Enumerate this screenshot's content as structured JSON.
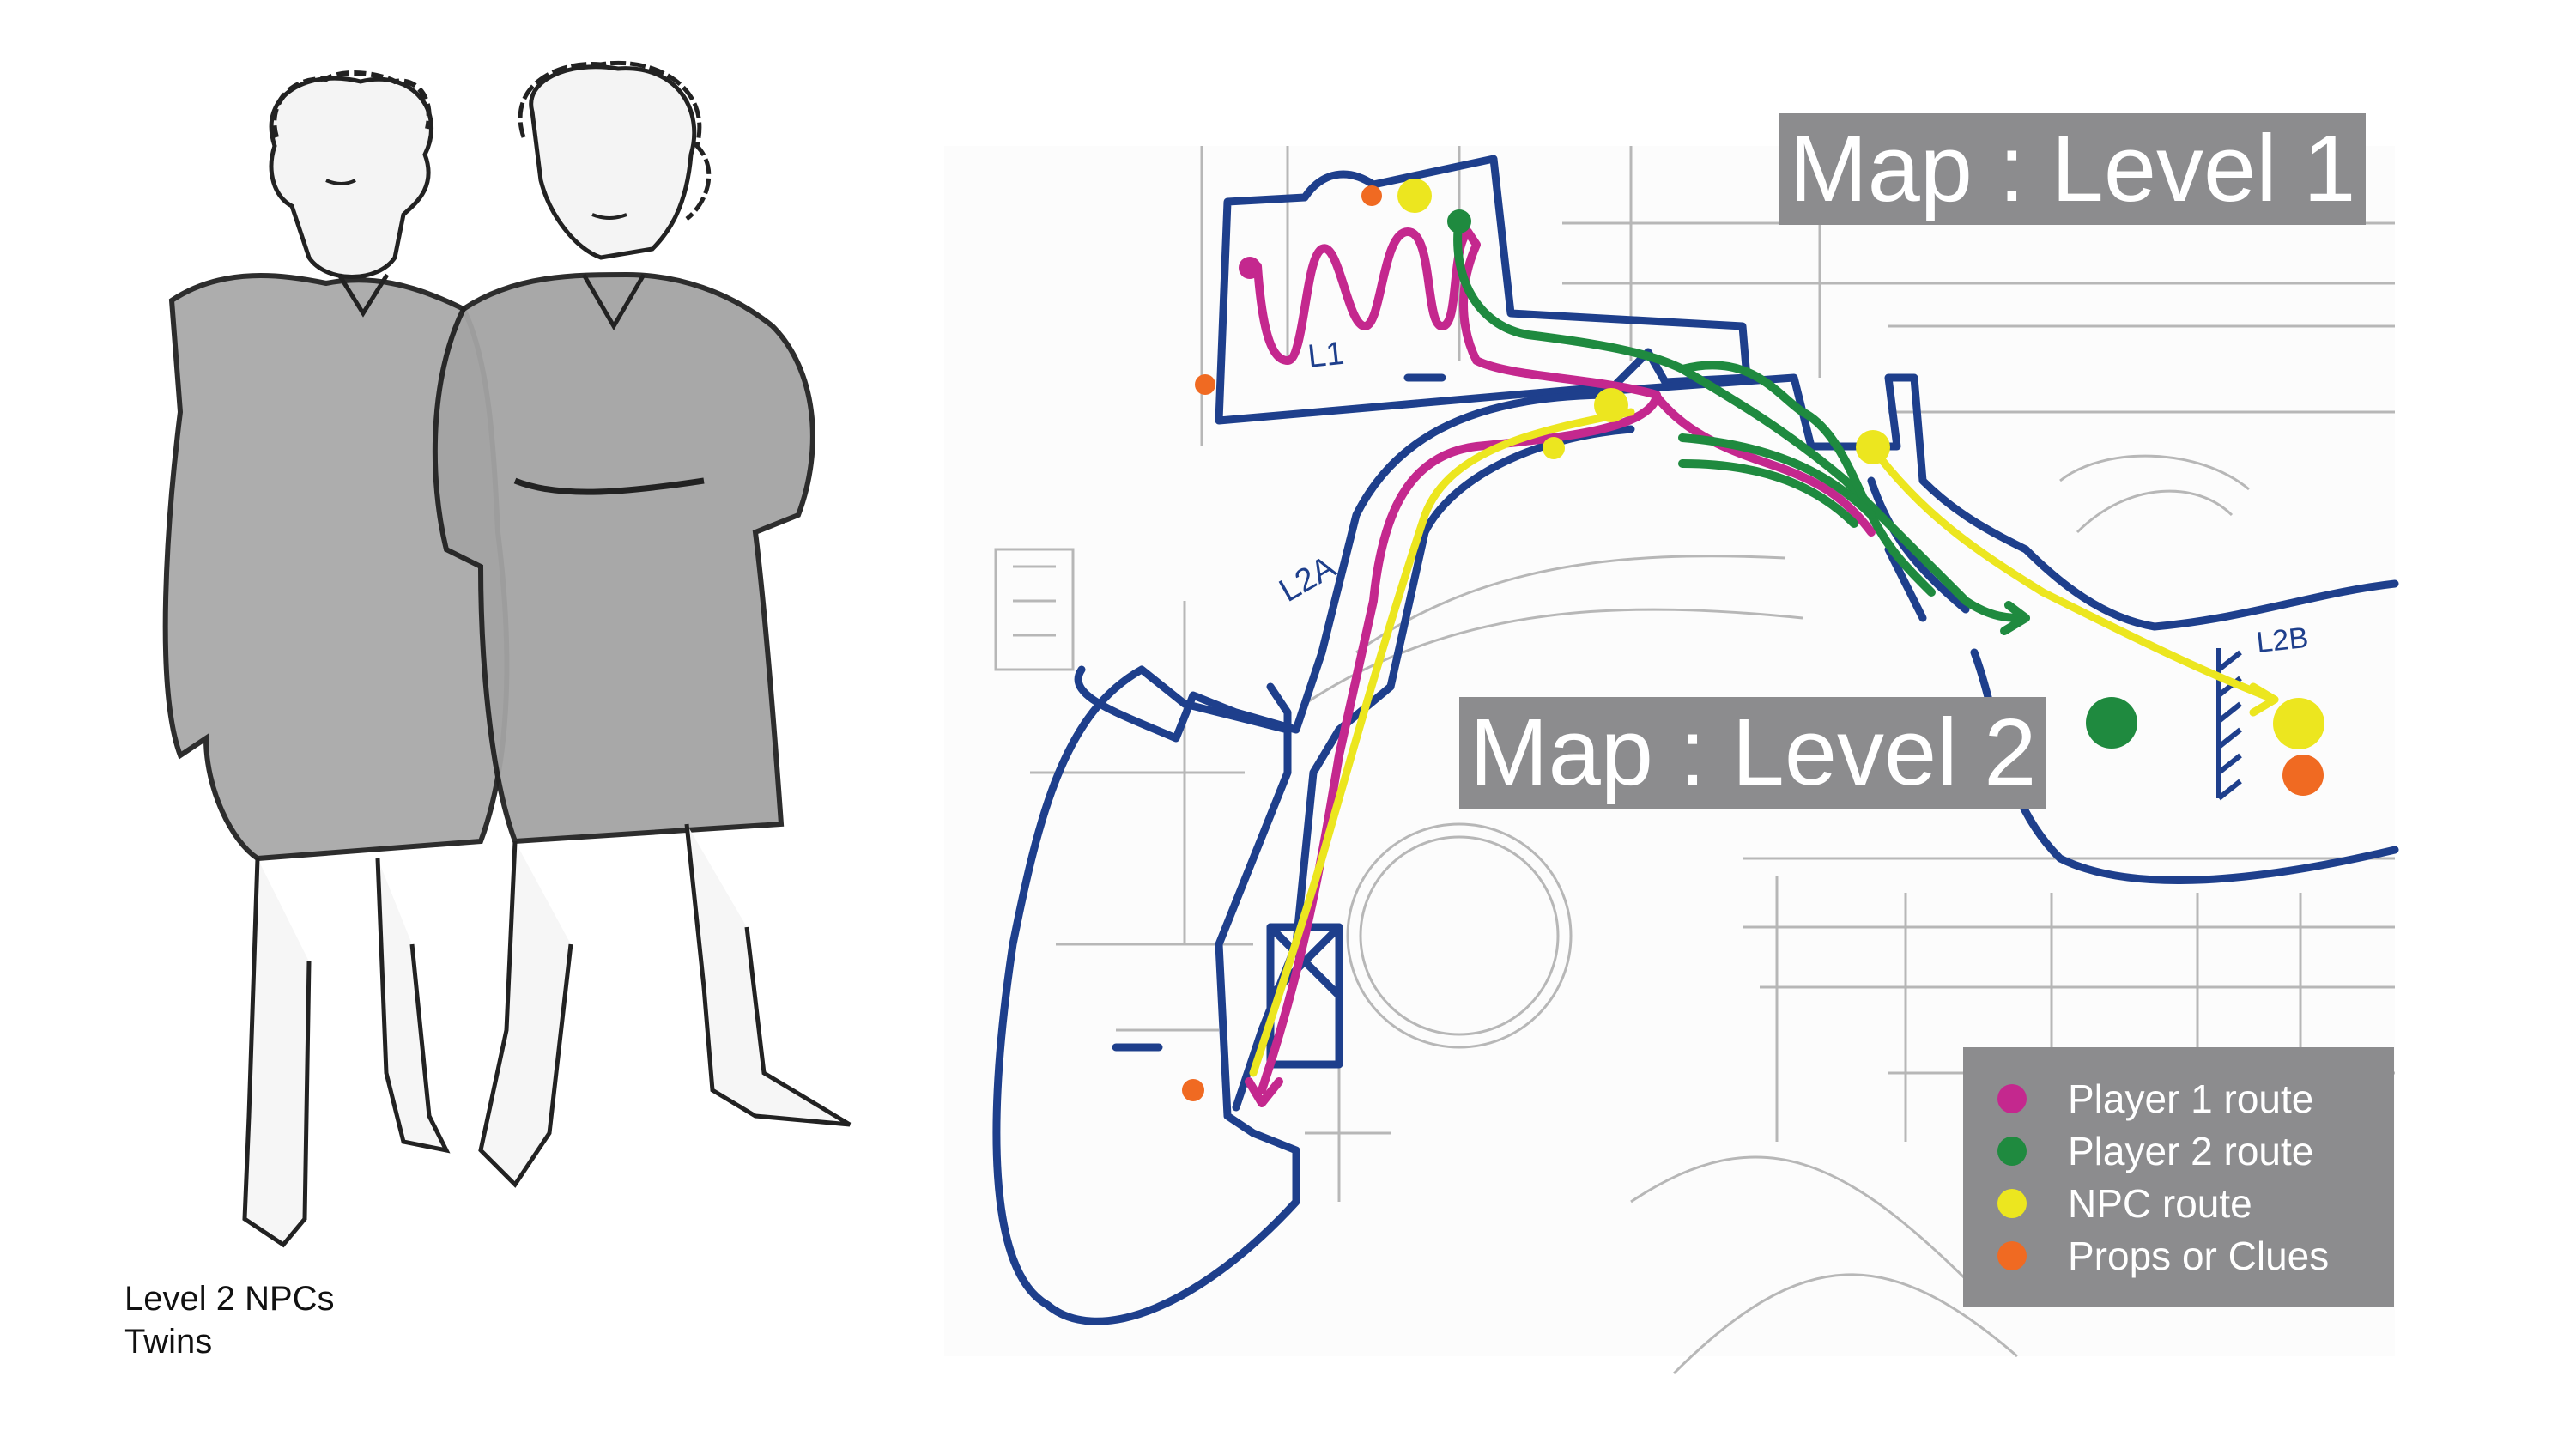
{
  "caption": {
    "line1": "Level 2 NPCs",
    "line2": "Twins"
  },
  "banners": {
    "level1": "Map : Level 1",
    "level2": "Map : Level 2"
  },
  "map_labels": {
    "l1": "L1",
    "l2a": "L2A",
    "l2b": "L2B"
  },
  "legend": [
    {
      "label": "Player 1 route",
      "color": "#c4288e"
    },
    {
      "label": "Player 2 route",
      "color": "#1f8a3f"
    },
    {
      "label": "NPC route",
      "color": "#ece61f"
    },
    {
      "label": "Props or Clues",
      "color": "#f06a22"
    }
  ],
  "colors": {
    "wall_outline": "#1e3f8c",
    "banner_bg": "#8c8c8e",
    "floorplan_lines": "#9a9a9a"
  }
}
